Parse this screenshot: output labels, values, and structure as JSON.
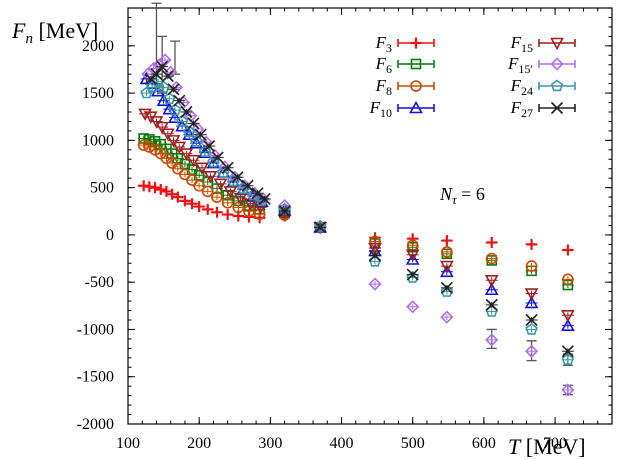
{
  "chart_data": {
    "type": "scatter",
    "ylabel": "F_n [MeV]",
    "xlabel": "T [MeV]",
    "xlim": [
      100,
      780
    ],
    "ylim": [
      -2000,
      2400
    ],
    "xticks": [
      100,
      200,
      300,
      400,
      500,
      600,
      700
    ],
    "yticks": [
      -2000,
      -1500,
      -1000,
      -500,
      0,
      500,
      1000,
      1500,
      2000
    ],
    "grid": false,
    "legend_position": "top-right",
    "annotation": "N_τ = 6",
    "series": [
      {
        "name": "F3",
        "label": "3",
        "color": "#ee1111",
        "marker": "plus",
        "points": [
          [
            122,
            520
          ],
          [
            130,
            510
          ],
          [
            138,
            500
          ],
          [
            146,
            480
          ],
          [
            154,
            460
          ],
          [
            162,
            430
          ],
          [
            170,
            400
          ],
          [
            180,
            360
          ],
          [
            190,
            330
          ],
          [
            200,
            300
          ],
          [
            212,
            270
          ],
          [
            225,
            240
          ],
          [
            240,
            215
          ],
          [
            255,
            200
          ],
          [
            270,
            190
          ],
          [
            285,
            180
          ],
          [
            320,
            200
          ],
          [
            370,
            80
          ],
          [
            447,
            -30
          ],
          [
            500,
            -40
          ],
          [
            548,
            -60
          ],
          [
            611,
            -80
          ],
          [
            667,
            -100
          ],
          [
            718,
            -160
          ]
        ]
      },
      {
        "name": "F6",
        "label": "6",
        "color": "#0a7a0a",
        "marker": "square",
        "points": [
          [
            122,
            1020
          ],
          [
            130,
            1010
          ],
          [
            138,
            990
          ],
          [
            146,
            960
          ],
          [
            154,
            910
          ],
          [
            162,
            860
          ],
          [
            170,
            810
          ],
          [
            180,
            750
          ],
          [
            190,
            690
          ],
          [
            200,
            630
          ],
          [
            212,
            560
          ],
          [
            225,
            490
          ],
          [
            240,
            420
          ],
          [
            255,
            360
          ],
          [
            270,
            310
          ],
          [
            285,
            270
          ],
          [
            320,
            230
          ],
          [
            370,
            80
          ],
          [
            447,
            -90
          ],
          [
            500,
            -130
          ],
          [
            548,
            -200
          ],
          [
            611,
            -270
          ],
          [
            667,
            -380
          ],
          [
            718,
            -530
          ]
        ]
      },
      {
        "name": "F8",
        "label": "8",
        "color": "#c84a00",
        "marker": "circle",
        "points": [
          [
            122,
            950
          ],
          [
            130,
            930
          ],
          [
            138,
            900
          ],
          [
            146,
            860
          ],
          [
            154,
            810
          ],
          [
            162,
            760
          ],
          [
            170,
            700
          ],
          [
            180,
            640
          ],
          [
            190,
            580
          ],
          [
            200,
            520
          ],
          [
            212,
            460
          ],
          [
            225,
            400
          ],
          [
            240,
            340
          ],
          [
            255,
            290
          ],
          [
            270,
            250
          ],
          [
            285,
            220
          ],
          [
            320,
            210
          ],
          [
            370,
            80
          ],
          [
            447,
            -70
          ],
          [
            500,
            -110
          ],
          [
            548,
            -180
          ],
          [
            611,
            -250
          ],
          [
            667,
            -330
          ],
          [
            718,
            -470
          ]
        ]
      },
      {
        "name": "F10",
        "label": "10",
        "color": "#1010dd",
        "marker": "triangle-up",
        "points": [
          [
            126,
            1650
          ],
          [
            134,
            1600
          ],
          [
            142,
            1520
          ],
          [
            150,
            1420
          ],
          [
            158,
            1330
          ],
          [
            166,
            1240
          ],
          [
            176,
            1150
          ],
          [
            186,
            1060
          ],
          [
            196,
            970
          ],
          [
            208,
            870
          ],
          [
            220,
            760
          ],
          [
            234,
            660
          ],
          [
            248,
            560
          ],
          [
            262,
            480
          ],
          [
            276,
            410
          ],
          [
            288,
            350
          ],
          [
            320,
            260
          ],
          [
            370,
            80
          ],
          [
            447,
            -170
          ],
          [
            500,
            -260
          ],
          [
            548,
            -390
          ],
          [
            611,
            -580
          ],
          [
            667,
            -720
          ],
          [
            718,
            -960
          ]
        ]
      },
      {
        "name": "F15",
        "label": "15",
        "color": "#a01e1e",
        "marker": "triangle-down",
        "points": [
          [
            124,
            1280
          ],
          [
            132,
            1250
          ],
          [
            140,
            1200
          ],
          [
            148,
            1140
          ],
          [
            156,
            1070
          ],
          [
            164,
            1000
          ],
          [
            172,
            930
          ],
          [
            182,
            860
          ],
          [
            192,
            790
          ],
          [
            204,
            710
          ],
          [
            216,
            620
          ],
          [
            230,
            540
          ],
          [
            244,
            460
          ],
          [
            258,
            390
          ],
          [
            272,
            330
          ],
          [
            286,
            290
          ],
          [
            320,
            240
          ],
          [
            370,
            80
          ],
          [
            447,
            -140
          ],
          [
            500,
            -210
          ],
          [
            548,
            -330
          ],
          [
            611,
            -480
          ],
          [
            667,
            -620
          ],
          [
            718,
            -850
          ]
        ]
      },
      {
        "name": "F15'",
        "label": "15′",
        "color": "#b070e8",
        "marker": "diamond",
        "points": [
          [
            128,
            1700
          ],
          [
            136,
            1760
          ],
          [
            144,
            1800
          ],
          [
            152,
            1850
          ],
          [
            160,
            1720
          ],
          [
            168,
            1560
          ],
          [
            178,
            1400
          ],
          [
            188,
            1260
          ],
          [
            198,
            1120
          ],
          [
            210,
            980
          ],
          [
            222,
            840
          ],
          [
            236,
            720
          ],
          [
            250,
            610
          ],
          [
            264,
            520
          ],
          [
            278,
            440
          ],
          [
            290,
            380
          ],
          [
            320,
            310
          ],
          [
            370,
            90
          ],
          [
            447,
            -520
          ],
          [
            500,
            -760
          ],
          [
            548,
            -870
          ],
          [
            611,
            -1110
          ],
          [
            667,
            -1230
          ],
          [
            718,
            -1640
          ]
        ]
      },
      {
        "name": "F24",
        "label": "24",
        "color": "#3a9aa0",
        "marker": "pentagon",
        "points": [
          [
            126,
            1500
          ],
          [
            134,
            1560
          ],
          [
            142,
            1620
          ],
          [
            150,
            1560
          ],
          [
            158,
            1440
          ],
          [
            166,
            1320
          ],
          [
            176,
            1200
          ],
          [
            186,
            1090
          ],
          [
            196,
            990
          ],
          [
            208,
            880
          ],
          [
            220,
            770
          ],
          [
            234,
            660
          ],
          [
            248,
            570
          ],
          [
            262,
            490
          ],
          [
            276,
            420
          ],
          [
            288,
            360
          ],
          [
            320,
            270
          ],
          [
            370,
            90
          ],
          [
            447,
            -280
          ],
          [
            500,
            -450
          ],
          [
            548,
            -600
          ],
          [
            611,
            -810
          ],
          [
            667,
            -1000
          ],
          [
            718,
            -1320
          ]
        ]
      },
      {
        "name": "F27",
        "label": "27",
        "color": "#222222",
        "marker": "cross",
        "points": [
          [
            132,
            1650
          ],
          [
            140,
            1700
          ],
          [
            148,
            1780
          ],
          [
            156,
            1680
          ],
          [
            164,
            1540
          ],
          [
            172,
            1420
          ],
          [
            182,
            1300
          ],
          [
            192,
            1180
          ],
          [
            202,
            1060
          ],
          [
            214,
            940
          ],
          [
            226,
            820
          ],
          [
            240,
            710
          ],
          [
            254,
            610
          ],
          [
            268,
            520
          ],
          [
            282,
            440
          ],
          [
            292,
            380
          ],
          [
            320,
            250
          ],
          [
            370,
            80
          ],
          [
            447,
            -220
          ],
          [
            500,
            -420
          ],
          [
            548,
            -560
          ],
          [
            611,
            -740
          ],
          [
            667,
            -900
          ],
          [
            718,
            -1230
          ]
        ]
      }
    ],
    "error_bars": [
      [
        140,
        1600,
        2450
      ],
      [
        148,
        1500,
        2100
      ],
      [
        166,
        1700,
        2050
      ],
      [
        611,
        -1200,
        -1000
      ],
      [
        667,
        -1330,
        -1120
      ],
      [
        718,
        -1690,
        -1590
      ],
      [
        718,
        -1380,
        -1260
      ]
    ]
  }
}
